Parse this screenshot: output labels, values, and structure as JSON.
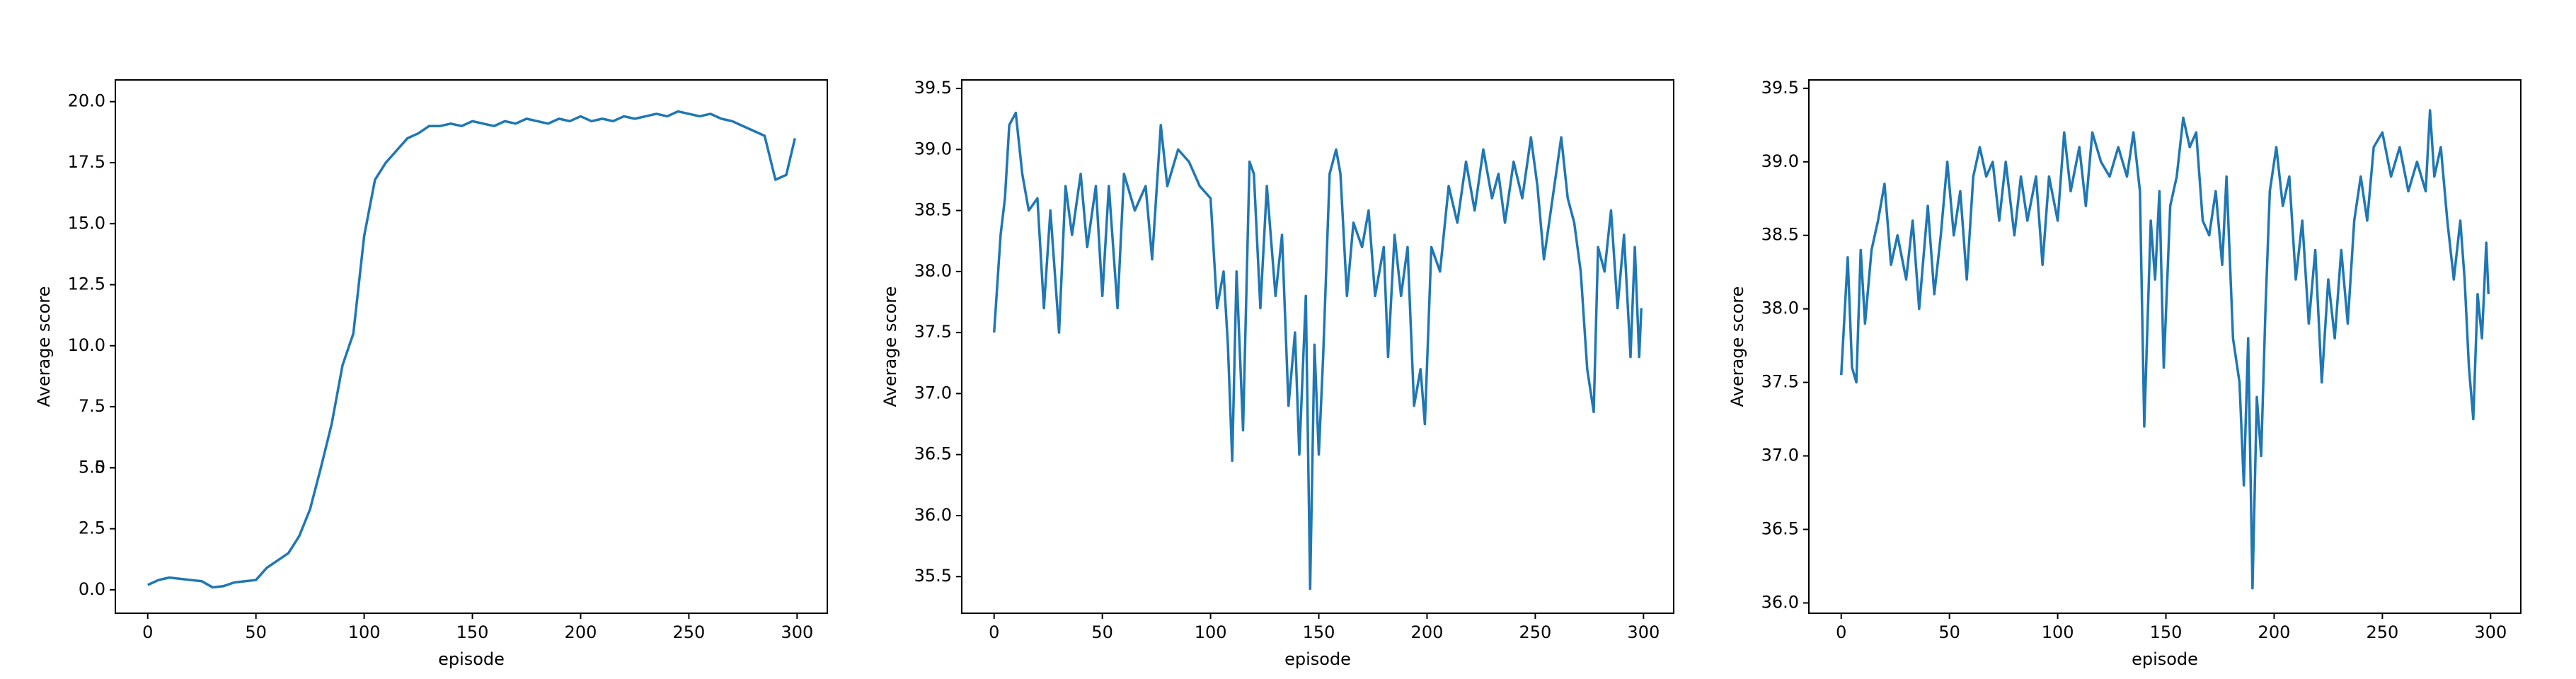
{
  "chart_data": [
    {
      "type": "line",
      "xlabel": "episode",
      "ylabel": "Average score",
      "x": [
        0,
        5,
        10,
        15,
        20,
        25,
        30,
        35,
        40,
        45,
        50,
        55,
        60,
        65,
        70,
        75,
        80,
        85,
        90,
        95,
        100,
        105,
        110,
        115,
        120,
        125,
        130,
        135,
        140,
        145,
        150,
        155,
        160,
        165,
        170,
        175,
        180,
        185,
        190,
        195,
        200,
        205,
        210,
        215,
        220,
        225,
        230,
        235,
        240,
        245,
        250,
        255,
        260,
        265,
        270,
        275,
        280,
        285,
        290,
        295,
        299
      ],
      "series": [
        {
          "color": "#1f77b4",
          "values": [
            0.2,
            0.4,
            0.5,
            0.45,
            0.4,
            0.35,
            0.1,
            0.15,
            0.3,
            0.35,
            0.4,
            0.9,
            1.2,
            1.5,
            2.2,
            3.3,
            5.0,
            6.8,
            9.2,
            10.5,
            14.5,
            16.8,
            17.5,
            18.0,
            18.5,
            18.7,
            19.0,
            19.0,
            19.1,
            19.0,
            19.2,
            19.1,
            19.0,
            19.2,
            19.1,
            19.3,
            19.2,
            19.1,
            19.3,
            19.2,
            19.4,
            19.2,
            19.3,
            19.2,
            19.4,
            19.3,
            19.4,
            19.5,
            19.4,
            19.6,
            19.5,
            19.4,
            19.5,
            19.3,
            19.2,
            19.0,
            18.8,
            18.6,
            16.8,
            17.0,
            18.5
          ]
        }
      ],
      "xlim": [
        -14.95,
        313.95
      ],
      "xticks": [
        0,
        50,
        100,
        150,
        200,
        250,
        300
      ],
      "ylim": [
        -0.96,
        20.89
      ],
      "yticks": [
        {
          "value": 0,
          "label": "0.0"
        },
        2.5,
        5,
        {
          "value": 5,
          "label": "5.0"
        },
        7.5,
        {
          "value": 10,
          "label": "10.0"
        },
        12.5,
        {
          "value": 15,
          "label": "15.0"
        },
        17.5,
        {
          "value": 20,
          "label": "20.0"
        }
      ]
    },
    {
      "type": "line",
      "xlabel": "episode",
      "ylabel": "Average score",
      "x": [
        0,
        3,
        5,
        7,
        10,
        13,
        16,
        20,
        23,
        26,
        30,
        33,
        36,
        40,
        43,
        47,
        50,
        53,
        57,
        60,
        65,
        70,
        73,
        77,
        80,
        85,
        90,
        95,
        100,
        103,
        106,
        108,
        110,
        112,
        115,
        118,
        120,
        123,
        126,
        130,
        133,
        136,
        139,
        141,
        144,
        146,
        148,
        150,
        152,
        155,
        158,
        160,
        163,
        166,
        170,
        173,
        176,
        180,
        182,
        185,
        188,
        191,
        194,
        197,
        199,
        202,
        206,
        210,
        214,
        218,
        222,
        226,
        230,
        233,
        236,
        240,
        244,
        248,
        251,
        254,
        258,
        262,
        265,
        268,
        271,
        274,
        277,
        279,
        282,
        285,
        288,
        291,
        294,
        296,
        298,
        299
      ],
      "series": [
        {
          "color": "#1f77b4",
          "values": [
            37.5,
            38.3,
            38.6,
            39.2,
            39.3,
            38.8,
            38.5,
            38.6,
            37.7,
            38.5,
            37.5,
            38.7,
            38.3,
            38.8,
            38.2,
            38.7,
            37.8,
            38.7,
            37.7,
            38.8,
            38.5,
            38.7,
            38.1,
            39.2,
            38.7,
            39.0,
            38.9,
            38.7,
            38.6,
            37.7,
            38.0,
            37.4,
            36.45,
            38.0,
            36.7,
            38.9,
            38.8,
            37.7,
            38.7,
            37.8,
            38.3,
            36.9,
            37.5,
            36.5,
            37.8,
            35.4,
            37.4,
            36.5,
            37.3,
            38.8,
            39.0,
            38.8,
            37.8,
            38.4,
            38.2,
            38.5,
            37.8,
            38.2,
            37.3,
            38.3,
            37.8,
            38.2,
            36.9,
            37.2,
            36.75,
            38.2,
            38.0,
            38.7,
            38.4,
            38.9,
            38.5,
            39.0,
            38.6,
            38.8,
            38.4,
            38.9,
            38.6,
            39.1,
            38.7,
            38.1,
            38.6,
            39.1,
            38.6,
            38.4,
            38.0,
            37.2,
            36.85,
            38.2,
            38.0,
            38.5,
            37.7,
            38.3,
            37.3,
            38.2,
            37.3,
            37.7
          ]
        }
      ],
      "xlim": [
        -14.95,
        313.95
      ],
      "xticks": [
        0,
        50,
        100,
        150,
        200,
        250,
        300
      ],
      "ylim": [
        35.2,
        39.57
      ],
      "yticks": [
        35.5,
        {
          "value": 36,
          "label": "36.0"
        },
        36.5,
        {
          "value": 37,
          "label": "37.0"
        },
        37.5,
        {
          "value": 38,
          "label": "38.0"
        },
        38.5,
        {
          "value": 39,
          "label": "39.0"
        },
        39.5
      ]
    },
    {
      "type": "line",
      "xlabel": "episode",
      "ylabel": "Average score",
      "x": [
        0,
        3,
        5,
        7,
        9,
        11,
        14,
        17,
        20,
        23,
        26,
        30,
        33,
        36,
        40,
        43,
        46,
        49,
        52,
        55,
        58,
        61,
        64,
        67,
        70,
        73,
        76,
        80,
        83,
        86,
        90,
        93,
        96,
        100,
        103,
        106,
        110,
        113,
        116,
        120,
        124,
        128,
        132,
        135,
        138,
        140,
        143,
        145,
        147,
        149,
        152,
        155,
        158,
        161,
        164,
        167,
        170,
        173,
        176,
        178,
        181,
        184,
        186,
        188,
        190,
        192,
        194,
        196,
        198,
        201,
        204,
        207,
        210,
        213,
        216,
        219,
        222,
        225,
        228,
        231,
        234,
        237,
        240,
        243,
        246,
        250,
        254,
        258,
        262,
        266,
        270,
        272,
        274,
        277,
        280,
        283,
        286,
        288,
        290,
        292,
        294,
        296,
        298,
        299
      ],
      "series": [
        {
          "color": "#1f77b4",
          "values": [
            37.55,
            38.35,
            37.6,
            37.5,
            38.4,
            37.9,
            38.4,
            38.6,
            38.85,
            38.3,
            38.5,
            38.2,
            38.6,
            38.0,
            38.7,
            38.1,
            38.5,
            39.0,
            38.5,
            38.8,
            38.2,
            38.9,
            39.1,
            38.9,
            39.0,
            38.6,
            39.0,
            38.5,
            38.9,
            38.6,
            38.9,
            38.3,
            38.9,
            38.6,
            39.2,
            38.8,
            39.1,
            38.7,
            39.2,
            39.0,
            38.9,
            39.1,
            38.9,
            39.2,
            38.8,
            37.2,
            38.6,
            38.2,
            38.8,
            37.6,
            38.7,
            38.9,
            39.3,
            39.1,
            39.2,
            38.6,
            38.5,
            38.8,
            38.3,
            38.9,
            37.8,
            37.5,
            36.8,
            37.8,
            36.1,
            37.4,
            37.0,
            38.0,
            38.8,
            39.1,
            38.7,
            38.9,
            38.2,
            38.6,
            37.9,
            38.4,
            37.5,
            38.2,
            37.8,
            38.4,
            37.9,
            38.6,
            38.9,
            38.6,
            39.1,
            39.2,
            38.9,
            39.1,
            38.8,
            39.0,
            38.8,
            39.35,
            38.9,
            39.1,
            38.6,
            38.2,
            38.6,
            38.2,
            37.6,
            37.25,
            38.1,
            37.8,
            38.45,
            38.1
          ]
        }
      ],
      "xlim": [
        -14.95,
        313.95
      ],
      "xticks": [
        0,
        50,
        100,
        150,
        200,
        250,
        300
      ],
      "ylim": [
        35.93,
        39.557
      ],
      "yticks": [
        {
          "value": 36,
          "label": "36.0"
        },
        36.5,
        {
          "value": 37,
          "label": "37.0"
        },
        37.5,
        {
          "value": 38,
          "label": "38.0"
        },
        38.5,
        {
          "value": 39,
          "label": "39.0"
        },
        39.5
      ]
    }
  ]
}
